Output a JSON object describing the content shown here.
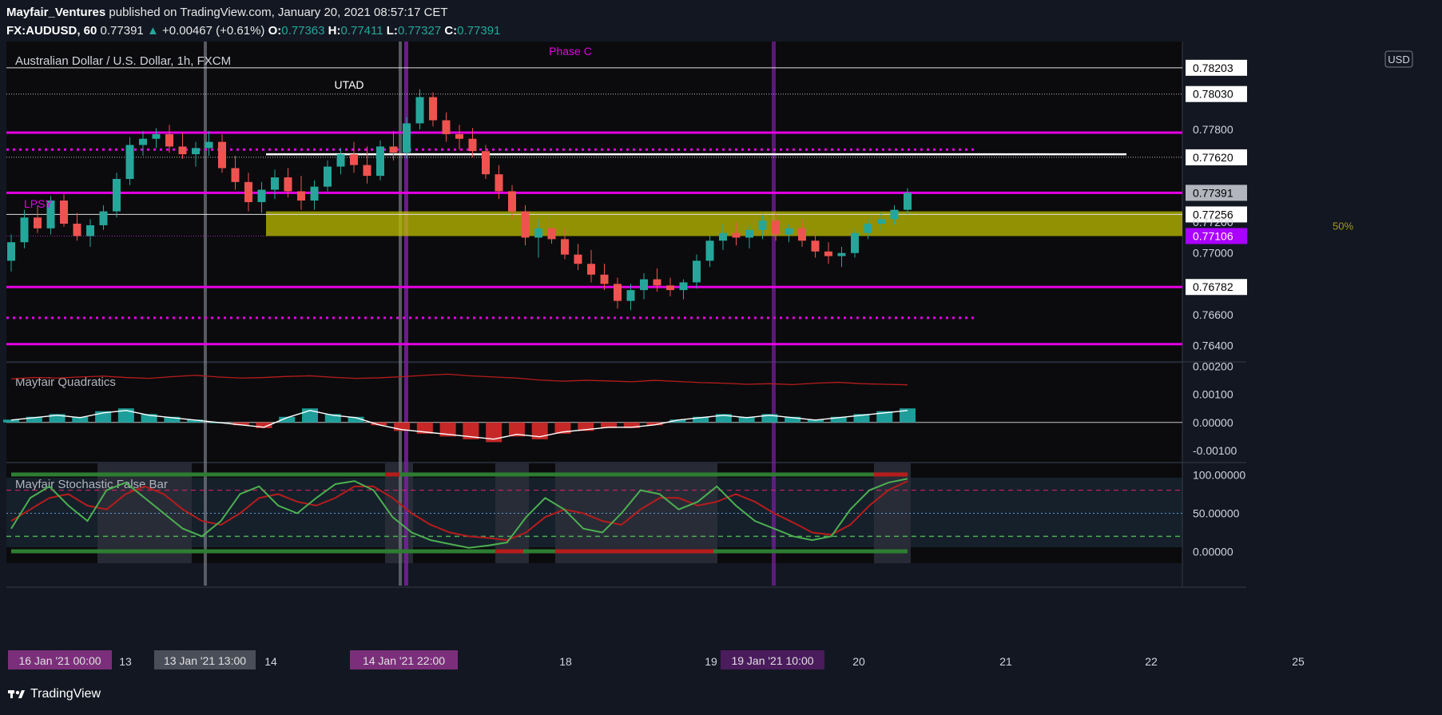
{
  "header": {
    "author": "Mayfair_Ventures",
    "published": "published on TradingView.com, January 20, 2021 08:57:17 CET",
    "symbol": "FX:AUDUSD, 60",
    "last": "0.77391",
    "change_arrow": "▲",
    "change": "+0.00467 (+0.61%)",
    "o_label": "O:",
    "o": "0.77363",
    "h_label": "H:",
    "h": "0.77411",
    "l_label": "L:",
    "l": "0.77327",
    "c_label": "C:",
    "c": "0.77391"
  },
  "chart_data": {
    "type": "candlestick",
    "title": "Australian Dollar / U.S. Dollar, 1h, FXCM",
    "currency": "USD",
    "annotations": [
      "Phase C",
      "UTAD",
      "LPSY",
      "50%"
    ],
    "price_scale": {
      "ticks": [
        "0.77800",
        "0.77620",
        "0.77391",
        "0.77256",
        "0.77200",
        "0.77106",
        "0.77000",
        "0.76782",
        "0.76600",
        "0.76400"
      ],
      "top_boxes": [
        "0.78203",
        "0.78030"
      ],
      "ylim": [
        0.763,
        0.7837
      ]
    },
    "price_highlight": {
      "last": "0.77391",
      "box1": "0.77256",
      "purple": "0.77106"
    },
    "levels": {
      "magenta_solid": [
        0.7778,
        0.7739,
        0.7678,
        0.7641
      ],
      "magenta_dotted": [
        0.7767,
        0.7658
      ],
      "white_solid": [
        0.782,
        0.7725
      ],
      "white_dotted": [
        0.7803,
        0.7762,
        0.7678
      ],
      "white_segment": 0.7764,
      "range_band": [
        0.7711,
        0.7727
      ]
    },
    "candles": [
      [
        0.7695,
        0.7712,
        0.7688,
        0.7707
      ],
      [
        0.7707,
        0.7728,
        0.7703,
        0.7723
      ],
      [
        0.7723,
        0.7731,
        0.7713,
        0.7716
      ],
      [
        0.7716,
        0.7737,
        0.7712,
        0.7734
      ],
      [
        0.7734,
        0.7738,
        0.7717,
        0.7719
      ],
      [
        0.7719,
        0.7726,
        0.7708,
        0.7711
      ],
      [
        0.7711,
        0.7722,
        0.7704,
        0.7718
      ],
      [
        0.7718,
        0.7731,
        0.7715,
        0.7727
      ],
      [
        0.7727,
        0.7752,
        0.7723,
        0.7748
      ],
      [
        0.7748,
        0.7775,
        0.7744,
        0.777
      ],
      [
        0.777,
        0.7779,
        0.7763,
        0.7774
      ],
      [
        0.7774,
        0.7781,
        0.7768,
        0.7777
      ],
      [
        0.7777,
        0.7783,
        0.7765,
        0.7769
      ],
      [
        0.7769,
        0.7778,
        0.7761,
        0.7764
      ],
      [
        0.7764,
        0.7772,
        0.7756,
        0.7768
      ],
      [
        0.7768,
        0.7779,
        0.7763,
        0.7772
      ],
      [
        0.7772,
        0.7777,
        0.7752,
        0.7755
      ],
      [
        0.7755,
        0.7763,
        0.7741,
        0.7746
      ],
      [
        0.7746,
        0.7752,
        0.7727,
        0.7733
      ],
      [
        0.7733,
        0.7746,
        0.7726,
        0.7741
      ],
      [
        0.7741,
        0.7754,
        0.7735,
        0.7749
      ],
      [
        0.7749,
        0.7755,
        0.7736,
        0.774
      ],
      [
        0.774,
        0.775,
        0.7728,
        0.7734
      ],
      [
        0.7734,
        0.7747,
        0.7728,
        0.7743
      ],
      [
        0.7743,
        0.776,
        0.774,
        0.7756
      ],
      [
        0.7756,
        0.7768,
        0.7751,
        0.7764
      ],
      [
        0.7764,
        0.7772,
        0.7752,
        0.7757
      ],
      [
        0.7757,
        0.7769,
        0.7745,
        0.775
      ],
      [
        0.775,
        0.7773,
        0.7747,
        0.7769
      ],
      [
        0.7769,
        0.7779,
        0.776,
        0.7765
      ],
      [
        0.7765,
        0.7788,
        0.7761,
        0.7784
      ],
      [
        0.7784,
        0.7806,
        0.778,
        0.7801
      ],
      [
        0.7801,
        0.7804,
        0.7782,
        0.7786
      ],
      [
        0.7786,
        0.7791,
        0.7772,
        0.7777
      ],
      [
        0.7777,
        0.7783,
        0.7767,
        0.7774
      ],
      [
        0.7774,
        0.7781,
        0.7762,
        0.7766
      ],
      [
        0.7766,
        0.777,
        0.7748,
        0.7751
      ],
      [
        0.7751,
        0.7757,
        0.7735,
        0.774
      ],
      [
        0.774,
        0.7744,
        0.7722,
        0.7727
      ],
      [
        0.7727,
        0.7731,
        0.7705,
        0.771
      ],
      [
        0.771,
        0.7722,
        0.7697,
        0.7716
      ],
      [
        0.7716,
        0.7723,
        0.7706,
        0.7709
      ],
      [
        0.7709,
        0.7716,
        0.7696,
        0.7699
      ],
      [
        0.7699,
        0.7706,
        0.7689,
        0.7693
      ],
      [
        0.7693,
        0.7702,
        0.7681,
        0.7686
      ],
      [
        0.7686,
        0.7693,
        0.7676,
        0.768
      ],
      [
        0.768,
        0.7684,
        0.7664,
        0.7669
      ],
      [
        0.7669,
        0.768,
        0.7663,
        0.7676
      ],
      [
        0.7676,
        0.7687,
        0.767,
        0.7683
      ],
      [
        0.7683,
        0.769,
        0.7675,
        0.7679
      ],
      [
        0.7679,
        0.7684,
        0.7672,
        0.7676
      ],
      [
        0.7676,
        0.7683,
        0.767,
        0.7681
      ],
      [
        0.7681,
        0.7699,
        0.7677,
        0.7695
      ],
      [
        0.7695,
        0.7711,
        0.7691,
        0.7708
      ],
      [
        0.7708,
        0.7719,
        0.7702,
        0.7713
      ],
      [
        0.7713,
        0.772,
        0.7705,
        0.771
      ],
      [
        0.771,
        0.7718,
        0.7703,
        0.7715
      ],
      [
        0.7715,
        0.7725,
        0.7709,
        0.7721
      ],
      [
        0.7721,
        0.7726,
        0.7708,
        0.7712
      ],
      [
        0.7712,
        0.7719,
        0.7707,
        0.7716
      ],
      [
        0.7716,
        0.7722,
        0.7704,
        0.7708
      ],
      [
        0.7708,
        0.7714,
        0.7697,
        0.7701
      ],
      [
        0.7701,
        0.7707,
        0.7693,
        0.7698
      ],
      [
        0.7698,
        0.7704,
        0.7691,
        0.77
      ],
      [
        0.77,
        0.7716,
        0.7697,
        0.7713
      ],
      [
        0.7713,
        0.7722,
        0.7709,
        0.7719
      ],
      [
        0.7719,
        0.7726,
        0.7714,
        0.7722
      ],
      [
        0.7722,
        0.7731,
        0.7718,
        0.7728
      ],
      [
        0.7728,
        0.7742,
        0.7725,
        0.7739
      ]
    ],
    "quadratics": {
      "name": "Mayfair Quadratics",
      "ticks": [
        "0.00200",
        "0.00100",
        "0.00000",
        "-0.00100"
      ],
      "ylim": [
        -0.0014,
        0.0021
      ],
      "signal": [
        0.00155,
        0.0016,
        0.00158,
        0.00162,
        0.00165,
        0.0016,
        0.00157,
        0.00163,
        0.00168,
        0.00162,
        0.00158,
        0.0016,
        0.00164,
        0.00166,
        0.00161,
        0.00157,
        0.00159,
        0.00163,
        0.00168,
        0.00172,
        0.00166,
        0.00162,
        0.00158,
        0.00151,
        0.00147,
        0.0015,
        0.00148,
        0.00145,
        0.0015,
        0.00146,
        0.00142,
        0.0014,
        0.00136,
        0.00138,
        0.00135,
        0.0014,
        0.00143,
        0.00138,
        0.00136,
        0.00134
      ],
      "hist": [
        0.0001,
        0.0002,
        0.0003,
        0.0002,
        0.0004,
        0.0005,
        0.0003,
        0.0002,
        0.0001,
        0.0,
        -0.0001,
        -0.0002,
        0.0002,
        0.0005,
        0.0003,
        0.0002,
        -0.0001,
        -0.0003,
        -0.0004,
        -0.0005,
        -0.0006,
        -0.0007,
        -0.0005,
        -0.0006,
        -0.0004,
        -0.0003,
        -0.0002,
        -0.0002,
        -0.0001,
        0.0001,
        0.0002,
        0.0003,
        0.0002,
        0.0003,
        0.0002,
        0.0001,
        0.0002,
        0.0003,
        0.0004,
        0.0005
      ]
    },
    "stochastic": {
      "name": "Mayfair Stochastic False Bar",
      "ticks": [
        "100.00000",
        "50.00000",
        "0.00000"
      ],
      "ylim": [
        -15,
        115
      ],
      "k": [
        30,
        70,
        85,
        60,
        40,
        80,
        90,
        70,
        50,
        30,
        20,
        40,
        75,
        85,
        60,
        50,
        70,
        88,
        92,
        80,
        45,
        25,
        15,
        10,
        5,
        8,
        12,
        45,
        70,
        55,
        30,
        25,
        50,
        80,
        75,
        55,
        65,
        85,
        60,
        40,
        30,
        20,
        15,
        20,
        55,
        80,
        90,
        95
      ],
      "d": [
        40,
        55,
        70,
        75,
        60,
        55,
        75,
        85,
        75,
        55,
        40,
        35,
        50,
        70,
        75,
        65,
        60,
        70,
        85,
        85,
        70,
        50,
        35,
        25,
        20,
        18,
        15,
        25,
        45,
        55,
        50,
        40,
        35,
        55,
        70,
        70,
        60,
        65,
        75,
        65,
        50,
        38,
        25,
        22,
        35,
        60,
        80,
        92
      ]
    },
    "time_labels": [
      "13",
      "14",
      "18",
      "19",
      "20",
      "21",
      "22",
      "25"
    ],
    "time_boxes": [
      "16 Jan '21  00:00",
      "13 Jan '21  13:00",
      "14 Jan '21  22:00",
      "19 Jan '21  10:00"
    ]
  },
  "colors": {
    "bg": "#131722",
    "up": "#26a69a",
    "down": "#ef5350",
    "magenta": "#e400e4",
    "band": "#bfbf00",
    "purple_line": "#7b1fa2",
    "grey_line": "#787b86"
  },
  "brand": {
    "name": "TradingView",
    "icon": "tradingview-logo-icon"
  }
}
